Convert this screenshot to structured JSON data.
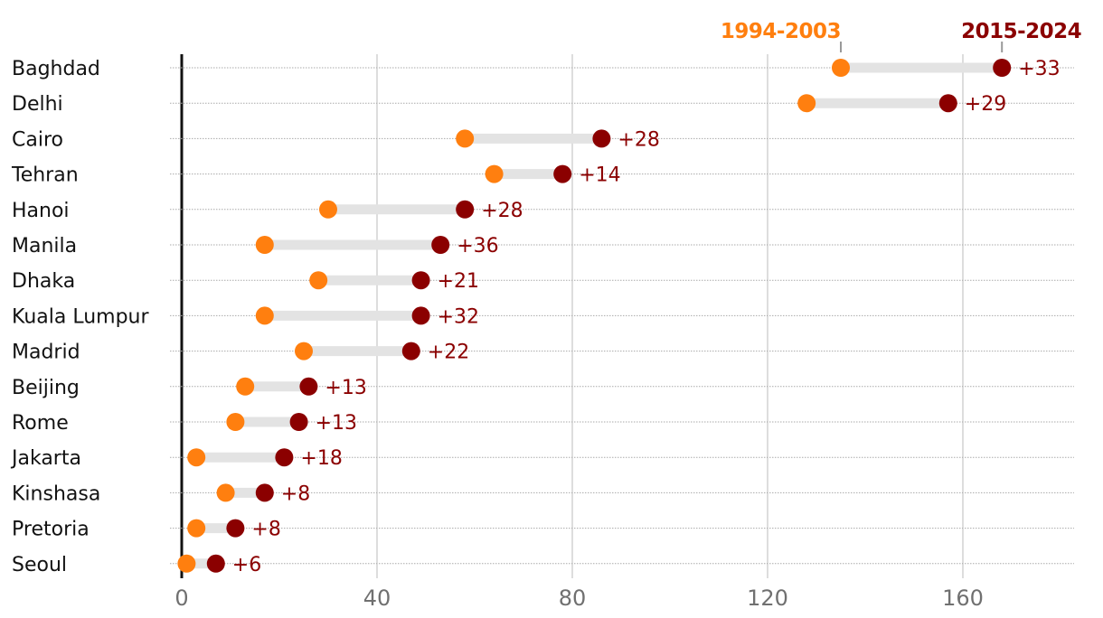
{
  "chart_data": {
    "type": "dumbbell",
    "title": "",
    "xlabel": "",
    "ylabel": "",
    "xlim": [
      0,
      180
    ],
    "xticks": [
      0,
      40,
      80,
      120,
      160
    ],
    "xtick_labels": [
      "0",
      "40",
      "80",
      "120",
      "160"
    ],
    "grid": true,
    "colors": {
      "start": "#ff7f0f",
      "end": "#8b0000",
      "connector": "#e3e3e3",
      "axis": "#121212",
      "grid": "#bbbbbb",
      "tick_text": "#707070",
      "label_text": "#121212"
    },
    "legend": [
      {
        "name": "1994-2003",
        "color": "#ff7f0f",
        "anchor_row": 0,
        "series": "start"
      },
      {
        "name": "2015-2024",
        "color": "#8b0000",
        "anchor_row": 0,
        "series": "end"
      }
    ],
    "categories": [
      "Baghdad",
      "Delhi",
      "Cairo",
      "Tehran",
      "Hanoi",
      "Manila",
      "Dhaka",
      "Kuala Lumpur",
      "Madrid",
      "Beijing",
      "Rome",
      "Jakarta",
      "Kinshasa",
      "Pretoria",
      "Seoul"
    ],
    "series": [
      {
        "name": "1994-2003",
        "values": [
          135,
          128,
          58,
          64,
          30,
          17,
          28,
          17,
          25,
          13,
          11,
          3,
          9,
          3,
          1
        ]
      },
      {
        "name": "2015-2024",
        "values": [
          168,
          157,
          86,
          78,
          58,
          53,
          49,
          49,
          47,
          26,
          24,
          21,
          17,
          11,
          7
        ]
      }
    ],
    "diff_labels": [
      "+33",
      "+29",
      "+28",
      "+14",
      "+28",
      "+36",
      "+21",
      "+32",
      "+22",
      "+13",
      "+13",
      "+18",
      "+8",
      "+8",
      "+6"
    ]
  }
}
